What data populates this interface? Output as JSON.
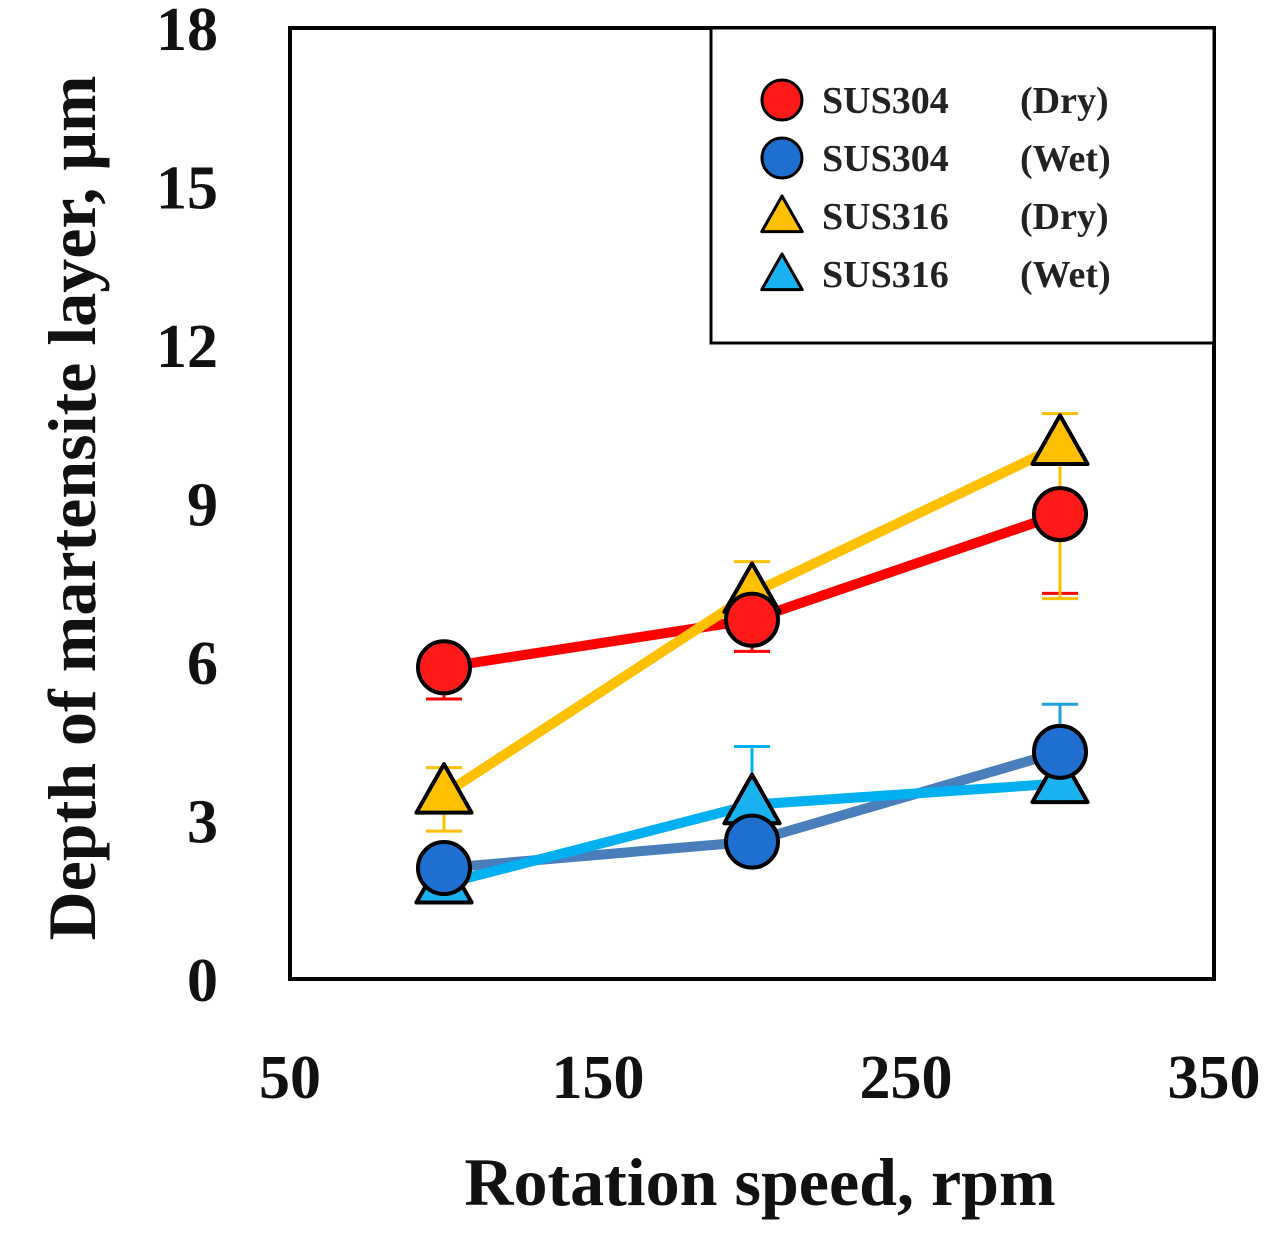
{
  "chart_data": {
    "type": "line",
    "title": "",
    "xlabel": "Rotation speed, rpm",
    "ylabel": "Depth of martensite layer, μm",
    "xlim": [
      50,
      350
    ],
    "ylim": [
      0,
      18
    ],
    "xticks": [
      "50",
      "150",
      "250",
      "350"
    ],
    "yticks": [
      "0",
      "3",
      "6",
      "9",
      "12",
      "15",
      "18"
    ],
    "xtick_values": [
      50,
      150,
      250,
      350
    ],
    "ytick_values": [
      0,
      3,
      6,
      9,
      12,
      15,
      18
    ],
    "grid": false,
    "legend_position": "top-right",
    "x": [
      100,
      200,
      300
    ],
    "series": [
      {
        "name": "SUS304",
        "condition": "(Dry)",
        "marker": "circle",
        "line_color": "#ff0000",
        "marker_fill": "#ff1a1a",
        "err_color": "#ff0000",
        "values": [
          5.9,
          6.8,
          8.8
        ],
        "err_lower": [
          0.6,
          0.6,
          1.5
        ],
        "err_upper": [
          0.0,
          0.0,
          0.0
        ]
      },
      {
        "name": "SUS304",
        "condition": "(Wet)",
        "marker": "circle",
        "line_color": "#4a7ebb",
        "marker_fill": "#1f6fd0",
        "err_color": "#1fa0e0",
        "values": [
          2.1,
          2.6,
          4.3
        ],
        "err_lower": [
          0.0,
          0.0,
          0.0
        ],
        "err_upper": [
          0.0,
          0.0,
          0.9
        ]
      },
      {
        "name": "SUS316",
        "condition": "(Dry)",
        "marker": "triangle",
        "line_color": "#ffc000",
        "marker_fill": "#ffc000",
        "err_color": "#ffc000",
        "values": [
          3.5,
          7.3,
          10.1
        ],
        "err_lower": [
          0.7,
          0.0,
          2.9
        ],
        "err_upper": [
          0.5,
          0.6,
          0.6
        ]
      },
      {
        "name": "SUS316",
        "condition": "(Wet)",
        "marker": "triangle",
        "line_color": "#00b0f0",
        "marker_fill": "#1ab2f0",
        "err_color": "#00b0f0",
        "values": [
          1.8,
          3.3,
          3.7
        ],
        "err_lower": [
          0.0,
          0.0,
          0.0
        ],
        "err_upper": [
          0.0,
          1.1,
          0.0
        ]
      }
    ]
  }
}
